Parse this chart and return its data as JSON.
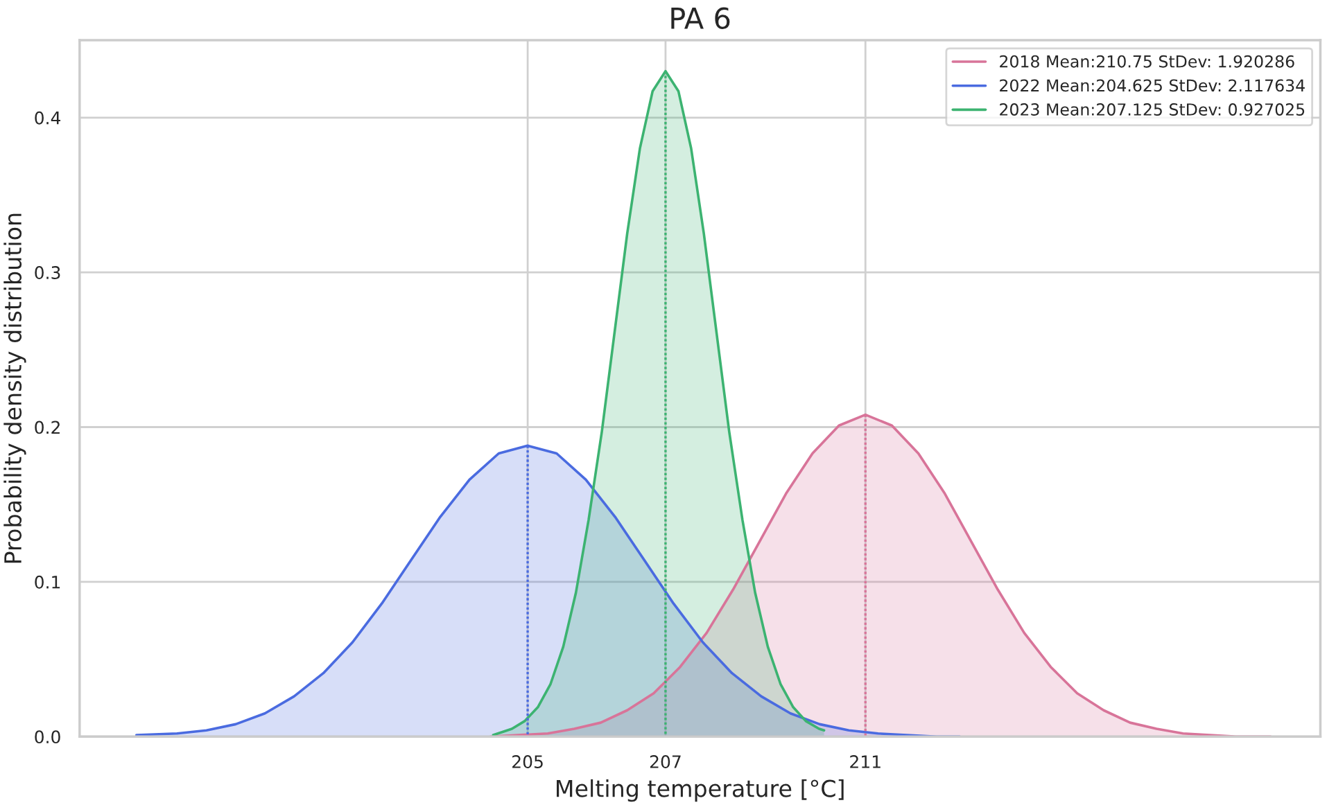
{
  "chart_data": {
    "type": "area",
    "title": "PA 6",
    "xlabel": "Melting temperature [°C]",
    "ylabel": "Probability density distribution",
    "xlim": [
      196.5,
      219
    ],
    "ylim": [
      0,
      0.45
    ],
    "xticks": [
      {
        "value": 204.625,
        "label": "205"
      },
      {
        "value": 207.125,
        "label": "207"
      },
      {
        "value": 210.75,
        "label": "211"
      }
    ],
    "yticks": [
      {
        "value": 0,
        "label": "0.0"
      },
      {
        "value": 0.1,
        "label": "0.1"
      },
      {
        "value": 0.2,
        "label": "0.2"
      },
      {
        "value": 0.3,
        "label": "0.3"
      },
      {
        "value": 0.4,
        "label": "0.4"
      }
    ],
    "grid": true,
    "legend": "top right",
    "line_style": "solid",
    "series": [
      {
        "name": "2018 Mean:210.75 StDev: 1.920286",
        "color": "#d87499",
        "x": [
          203.95,
          204.99,
          205.47,
          205.95,
          206.43,
          206.91,
          207.39,
          207.87,
          208.35,
          208.83,
          209.31,
          209.79,
          210.27,
          210.75,
          211.23,
          211.71,
          212.19,
          212.67,
          213.15,
          213.63,
          214.11,
          214.59,
          215.07,
          215.55,
          216.03,
          216.51,
          217.47,
          218.1
        ],
        "values": [
          0.0,
          0.002,
          0.005,
          0.009,
          0.017,
          0.028,
          0.045,
          0.067,
          0.095,
          0.126,
          0.157,
          0.183,
          0.201,
          0.208,
          0.201,
          0.183,
          0.157,
          0.126,
          0.095,
          0.067,
          0.045,
          0.028,
          0.017,
          0.009,
          0.005,
          0.002,
          0.0,
          0.0
        ]
      },
      {
        "name": "2022 Mean:204.625 StDev: 2.117634",
        "color": "#4a6be0",
        "x": [
          197.53,
          198.27,
          198.8,
          199.33,
          199.86,
          200.39,
          200.92,
          201.45,
          201.98,
          202.51,
          203.04,
          203.57,
          204.1,
          204.625,
          205.15,
          205.68,
          206.21,
          206.74,
          207.27,
          207.8,
          208.33,
          208.86,
          209.39,
          209.92,
          210.45,
          210.98,
          212.04,
          212.46
        ],
        "values": [
          0.001,
          0.002,
          0.004,
          0.008,
          0.015,
          0.026,
          0.041,
          0.061,
          0.086,
          0.114,
          0.142,
          0.166,
          0.183,
          0.188,
          0.183,
          0.166,
          0.142,
          0.114,
          0.086,
          0.061,
          0.041,
          0.026,
          0.015,
          0.008,
          0.004,
          0.002,
          0.0,
          0.0
        ]
      },
      {
        "name": "2023 Mean:207.125 StDev: 0.927025",
        "color": "#3cb371",
        "x": [
          204.0,
          204.34,
          204.57,
          204.81,
          205.04,
          205.27,
          205.5,
          205.73,
          205.97,
          206.2,
          206.43,
          206.66,
          206.89,
          207.125,
          207.36,
          207.59,
          207.82,
          208.05,
          208.28,
          208.52,
          208.75,
          208.98,
          209.21,
          209.44,
          209.67,
          209.91,
          210.0
        ],
        "values": [
          0.001,
          0.005,
          0.01,
          0.019,
          0.034,
          0.058,
          0.093,
          0.14,
          0.197,
          0.261,
          0.325,
          0.38,
          0.417,
          0.43,
          0.417,
          0.38,
          0.325,
          0.261,
          0.197,
          0.14,
          0.093,
          0.058,
          0.034,
          0.019,
          0.01,
          0.005,
          0.004
        ]
      },
      {
        "type": "line",
        "line_style": "dotted",
        "color": "#d87499",
        "x": [
          210.75,
          210.75
        ],
        "values": [
          0,
          0.208
        ]
      },
      {
        "type": "line",
        "line_style": "dotted",
        "color": "#4a6be0",
        "x": [
          204.625,
          204.625
        ],
        "values": [
          0,
          0.188
        ]
      },
      {
        "type": "line",
        "line_style": "dotted",
        "color": "#3cb371",
        "x": [
          207.125,
          207.125
        ],
        "values": [
          0,
          0.43
        ]
      }
    ]
  }
}
